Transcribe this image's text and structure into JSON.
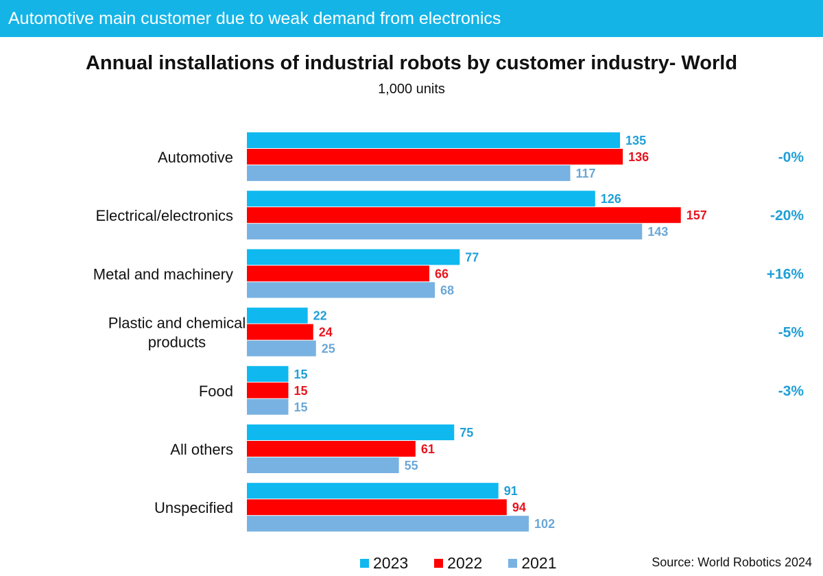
{
  "banner": "Automotive main customer due to weak demand from electronics",
  "chart_data": {
    "type": "bar",
    "orientation": "horizontal",
    "title": "Annual installations of industrial robots by customer industry- World",
    "subtitle": "1,000 units",
    "categories": [
      [
        "Automotive"
      ],
      [
        "Electrical/electronics"
      ],
      [
        "Metal and machinery"
      ],
      [
        "Plastic and chemical",
        "products"
      ],
      [
        "Food"
      ],
      [
        "All others"
      ],
      [
        "Unspecified"
      ]
    ],
    "series": [
      {
        "name": "2023",
        "color": "#0fb9f0",
        "label_color": "#1f9fd6",
        "values": [
          135,
          126,
          77,
          22,
          15,
          75,
          91
        ]
      },
      {
        "name": "2022",
        "color": "#ff0000",
        "label_color": "#e8141e",
        "values": [
          136,
          157,
          66,
          24,
          15,
          61,
          94
        ]
      },
      {
        "name": "2021",
        "color": "#78b2e2",
        "label_color": "#6aa7d6",
        "values": [
          117,
          143,
          68,
          25,
          15,
          55,
          102
        ]
      }
    ],
    "changes": [
      "-0%",
      "-20%",
      "+16%",
      "-5%",
      "-3%",
      "",
      ""
    ],
    "change_color": "#1f9fd6",
    "xlim": [
      0,
      157
    ],
    "legend_position": "bottom",
    "grid": false
  },
  "source": "Source: World Robotics 2024"
}
